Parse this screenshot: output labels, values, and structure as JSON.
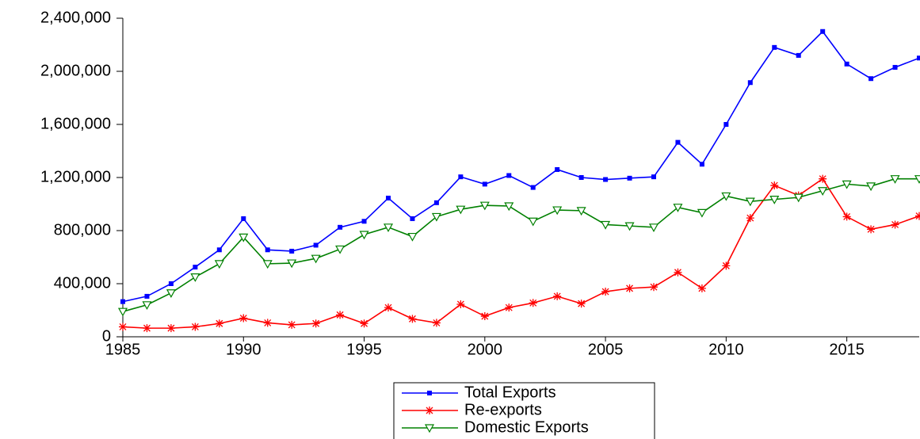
{
  "chart_data": {
    "type": "line",
    "x": [
      1985,
      1986,
      1987,
      1988,
      1989,
      1990,
      1991,
      1992,
      1993,
      1994,
      1995,
      1996,
      1997,
      1998,
      1999,
      2000,
      2001,
      2002,
      2003,
      2004,
      2005,
      2006,
      2007,
      2008,
      2009,
      2010,
      2011,
      2012,
      2013,
      2014,
      2015,
      2016,
      2017,
      2018
    ],
    "series": [
      {
        "name": "Total Exports",
        "color": "#0000ff",
        "marker": "square",
        "values": [
          265000,
          305000,
          400000,
          525000,
          655000,
          890000,
          655000,
          645000,
          690000,
          825000,
          870000,
          1045000,
          890000,
          1010000,
          1205000,
          1150000,
          1215000,
          1125000,
          1260000,
          1200000,
          1185000,
          1195000,
          1205000,
          1465000,
          1300000,
          1600000,
          1915000,
          2180000,
          2120000,
          2300000,
          2055000,
          1945000,
          2030000,
          2100000
        ]
      },
      {
        "name": "Re-exports",
        "color": "#ff0000",
        "marker": "star",
        "values": [
          75000,
          65000,
          65000,
          75000,
          100000,
          140000,
          105000,
          90000,
          100000,
          165000,
          100000,
          220000,
          135000,
          105000,
          245000,
          155000,
          220000,
          255000,
          305000,
          250000,
          340000,
          365000,
          375000,
          485000,
          365000,
          535000,
          895000,
          1140000,
          1065000,
          1190000,
          905000,
          810000,
          845000,
          910000
        ]
      },
      {
        "name": "Domestic Exports",
        "color": "#008000",
        "marker": "triangle-down",
        "values": [
          190000,
          240000,
          330000,
          450000,
          550000,
          750000,
          550000,
          555000,
          590000,
          660000,
          770000,
          825000,
          755000,
          905000,
          960000,
          990000,
          985000,
          870000,
          955000,
          950000,
          845000,
          835000,
          825000,
          975000,
          935000,
          1060000,
          1020000,
          1035000,
          1050000,
          1100000,
          1150000,
          1135000,
          1190000,
          1190000
        ]
      }
    ],
    "xlim": [
      1985,
      2018
    ],
    "xticks": [
      1985,
      1990,
      1995,
      2000,
      2005,
      2010,
      2015
    ],
    "ylim": [
      0,
      2400000
    ],
    "yticks": [
      0,
      {
        "value": 400000,
        "label": "400,000"
      },
      {
        "value": 800000,
        "label": "800,000"
      },
      {
        "value": 1200000,
        "label": "1,200,000"
      },
      {
        "value": 1600000,
        "label": "1,600,000"
      },
      {
        "value": 2000000,
        "label": "2,000,000"
      },
      {
        "value": 2400000,
        "label": "2,400,000"
      }
    ],
    "grid": false,
    "legend": "bottom"
  }
}
